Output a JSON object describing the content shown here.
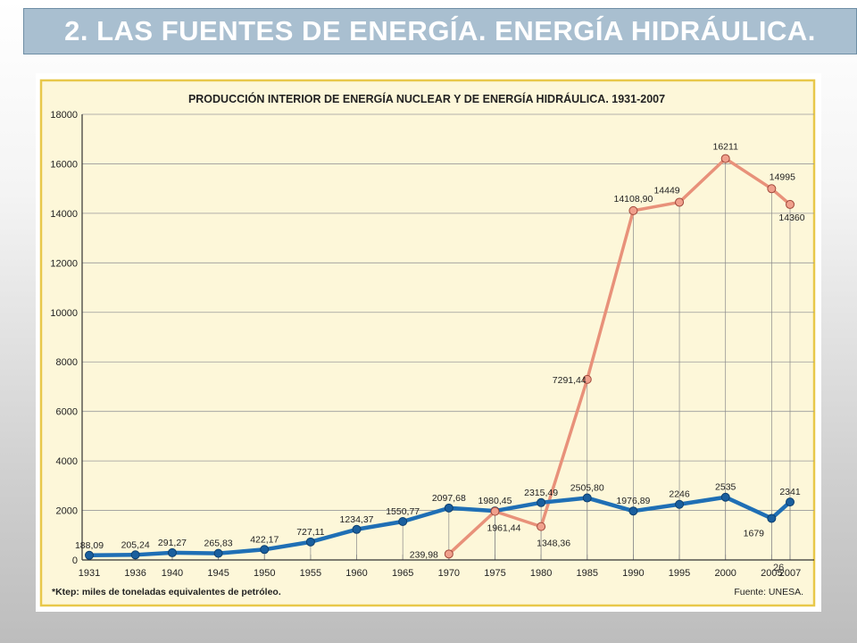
{
  "slide": {
    "title": "2. LAS FUENTES DE ENERGÍA. ENERGÍA HIDRÁULICA.",
    "page_number": "26"
  },
  "colors": {
    "title_bg": "#a9bfd0",
    "chart_bg": "#fdf7d9",
    "chart_border": "#e8c84a",
    "hydraulic_series": "#1f6fb5",
    "nuclear_series": "#e8917a"
  },
  "chart_data": {
    "type": "line",
    "title": "PRODUCCIÓN INTERIOR DE ENERGÍA NUCLEAR Y DE ENERGÍA HIDRÁULICA. 1931-2007",
    "xlabel": "",
    "ylabel": "",
    "ylim": [
      0,
      18000
    ],
    "yticks": [
      0,
      2000,
      4000,
      6000,
      8000,
      10000,
      12000,
      14000,
      16000,
      18000
    ],
    "grid": true,
    "categories": [
      "1931",
      "1936",
      "1940",
      "1945",
      "1950",
      "1955",
      "1960",
      "1965",
      "1970",
      "1975",
      "1980",
      "1985",
      "1990",
      "1995",
      "2000",
      "2005",
      "2007"
    ],
    "series": [
      {
        "values": [
          188.09,
          205.24,
          291.27,
          265.83,
          422.17,
          727.11,
          1234.37,
          1550.77,
          2097.68,
          1980.45,
          2315.49,
          2505.8,
          1976.89,
          2246,
          2535,
          1679,
          2341
        ],
        "labels": [
          "188,09",
          "205,24",
          "291,27",
          "265,83",
          "422,17",
          "727,11",
          "1234,37",
          "1550,77",
          "2097,68",
          "1980,45",
          "2315,49",
          "2505,80",
          "1976,89",
          "2246",
          "2535",
          "1679",
          "2341"
        ],
        "color": "#1f6fb5"
      },
      {
        "values": [
          null,
          null,
          null,
          null,
          null,
          null,
          null,
          null,
          239.98,
          1961.44,
          1348.36,
          7291.44,
          14108.9,
          14449,
          16211,
          14995,
          14360
        ],
        "labels": [
          "",
          "",
          "",
          "",
          "",
          "",
          "",
          "",
          "239,98",
          "1961,44",
          "1348,36",
          "7291,44",
          "14108,90",
          "14449",
          "16211",
          "14995",
          "14360"
        ],
        "color": "#e8917a"
      }
    ],
    "footnote": "*Ktep: miles de toneladas equivalentes de petróleo.",
    "source": "Fuente: UNESA."
  }
}
